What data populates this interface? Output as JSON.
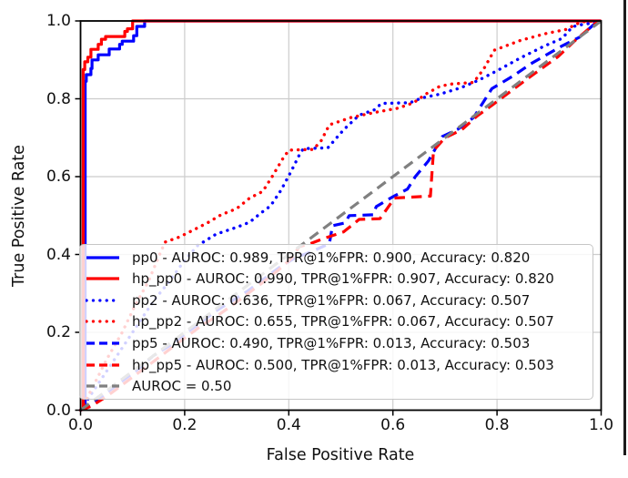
{
  "figure": {
    "background": "#ffffff",
    "grid_color": "#cccccc",
    "spine_color": "#000000",
    "legend_border_color": "#c6c6c6"
  },
  "chart_data": {
    "type": "line",
    "subtype": "roc-curves",
    "title": "",
    "xlabel": "False Positive Rate",
    "ylabel": "True Positive Rate",
    "xlim": [
      0.0,
      1.0
    ],
    "ylim": [
      0.0,
      1.0
    ],
    "x_ticks": [
      0.0,
      0.2,
      0.4,
      0.6,
      0.8,
      1.0
    ],
    "y_ticks": [
      0.0,
      0.2,
      0.4,
      0.6,
      0.8,
      1.0
    ],
    "x_tick_labels": [
      "0.0",
      "0.2",
      "0.4",
      "0.6",
      "0.8",
      "1.0"
    ],
    "y_tick_labels": [
      "0.0",
      "0.2",
      "0.4",
      "0.6",
      "0.8",
      "1.0"
    ],
    "grid": true,
    "legend_position": "lower left",
    "series": [
      {
        "name": "pp0",
        "legend_label": "pp0 - AUROC: 0.989, TPR@1%FPR: 0.900, Accuracy: 0.820",
        "auroc": 0.989,
        "tpr_at_1pct_fpr": 0.9,
        "accuracy": 0.82,
        "color": "#0000ff",
        "style": "solid",
        "points": [
          [
            0.009,
            0
          ],
          [
            0.009,
            0.845
          ],
          [
            0.011,
            0.845
          ],
          [
            0.011,
            0.862
          ],
          [
            0.02,
            0.862
          ],
          [
            0.02,
            0.878
          ],
          [
            0.022,
            0.878
          ],
          [
            0.022,
            0.9
          ],
          [
            0.034,
            0.9
          ],
          [
            0.034,
            0.913
          ],
          [
            0.055,
            0.913
          ],
          [
            0.055,
            0.928
          ],
          [
            0.075,
            0.928
          ],
          [
            0.075,
            0.94
          ],
          [
            0.08,
            0.94
          ],
          [
            0.08,
            0.948
          ],
          [
            0.102,
            0.948
          ],
          [
            0.102,
            0.962
          ],
          [
            0.108,
            0.962
          ],
          [
            0.108,
            0.986
          ],
          [
            0.123,
            0.986
          ],
          [
            0.123,
            1.0
          ],
          [
            1,
            1
          ]
        ]
      },
      {
        "name": "hp_pp0",
        "legend_label": "hp_pp0 - AUROC: 0.990, TPR@1%FPR: 0.907, Accuracy: 0.820",
        "auroc": 0.99,
        "tpr_at_1pct_fpr": 0.907,
        "accuracy": 0.82,
        "color": "#ff0000",
        "style": "solid",
        "points": [
          [
            0.005,
            0
          ],
          [
            0.005,
            0.875
          ],
          [
            0.008,
            0.875
          ],
          [
            0.008,
            0.895
          ],
          [
            0.014,
            0.895
          ],
          [
            0.014,
            0.907
          ],
          [
            0.02,
            0.907
          ],
          [
            0.02,
            0.927
          ],
          [
            0.034,
            0.927
          ],
          [
            0.034,
            0.94
          ],
          [
            0.04,
            0.94
          ],
          [
            0.04,
            0.953
          ],
          [
            0.048,
            0.953
          ],
          [
            0.048,
            0.96
          ],
          [
            0.085,
            0.96
          ],
          [
            0.085,
            0.973
          ],
          [
            0.09,
            0.973
          ],
          [
            0.09,
            0.98
          ],
          [
            0.1,
            0.98
          ],
          [
            0.1,
            1.0
          ],
          [
            1,
            1
          ]
        ]
      },
      {
        "name": "pp2",
        "legend_label": "pp2 - AUROC: 0.636, TPR@1%FPR: 0.067, Accuracy: 0.507",
        "auroc": 0.636,
        "tpr_at_1pct_fpr": 0.067,
        "accuracy": 0.507,
        "color": "#0000ff",
        "style": "dotted",
        "points": [
          [
            0,
            0
          ],
          [
            0.02,
            0.04
          ],
          [
            0.05,
            0.1
          ],
          [
            0.08,
            0.16
          ],
          [
            0.11,
            0.22
          ],
          [
            0.14,
            0.28
          ],
          [
            0.17,
            0.33
          ],
          [
            0.2,
            0.385
          ],
          [
            0.225,
            0.423
          ],
          [
            0.26,
            0.452
          ],
          [
            0.3,
            0.47
          ],
          [
            0.325,
            0.483
          ],
          [
            0.345,
            0.505
          ],
          [
            0.365,
            0.525
          ],
          [
            0.385,
            0.565
          ],
          [
            0.405,
            0.615
          ],
          [
            0.42,
            0.655
          ],
          [
            0.428,
            0.672
          ],
          [
            0.475,
            0.674
          ],
          [
            0.505,
            0.72
          ],
          [
            0.535,
            0.758
          ],
          [
            0.565,
            0.772
          ],
          [
            0.578,
            0.788
          ],
          [
            0.633,
            0.79
          ],
          [
            0.655,
            0.802
          ],
          [
            0.69,
            0.812
          ],
          [
            0.73,
            0.828
          ],
          [
            0.765,
            0.848
          ],
          [
            0.8,
            0.872
          ],
          [
            0.845,
            0.905
          ],
          [
            0.89,
            0.935
          ],
          [
            0.925,
            0.955
          ],
          [
            0.945,
            0.985
          ],
          [
            0.96,
            0.99
          ],
          [
            0.985,
            0.995
          ],
          [
            1,
            1
          ]
        ]
      },
      {
        "name": "hp_pp2",
        "legend_label": "hp_pp2 - AUROC: 0.655, TPR@1%FPR: 0.067, Accuracy: 0.507",
        "auroc": 0.655,
        "tpr_at_1pct_fpr": 0.067,
        "accuracy": 0.507,
        "color": "#ff0000",
        "style": "dotted",
        "points": [
          [
            0,
            0
          ],
          [
            0.02,
            0.05
          ],
          [
            0.05,
            0.13
          ],
          [
            0.08,
            0.2
          ],
          [
            0.105,
            0.27
          ],
          [
            0.13,
            0.33
          ],
          [
            0.155,
            0.41
          ],
          [
            0.163,
            0.432
          ],
          [
            0.19,
            0.445
          ],
          [
            0.22,
            0.465
          ],
          [
            0.245,
            0.482
          ],
          [
            0.27,
            0.502
          ],
          [
            0.3,
            0.518
          ],
          [
            0.325,
            0.545
          ],
          [
            0.35,
            0.562
          ],
          [
            0.368,
            0.6
          ],
          [
            0.388,
            0.645
          ],
          [
            0.4,
            0.668
          ],
          [
            0.447,
            0.67
          ],
          [
            0.462,
            0.692
          ],
          [
            0.478,
            0.733
          ],
          [
            0.52,
            0.752
          ],
          [
            0.565,
            0.765
          ],
          [
            0.61,
            0.776
          ],
          [
            0.64,
            0.79
          ],
          [
            0.663,
            0.812
          ],
          [
            0.69,
            0.832
          ],
          [
            0.712,
            0.838
          ],
          [
            0.755,
            0.842
          ],
          [
            0.775,
            0.878
          ],
          [
            0.795,
            0.925
          ],
          [
            0.845,
            0.95
          ],
          [
            0.895,
            0.968
          ],
          [
            0.932,
            0.978
          ],
          [
            0.962,
            0.998
          ],
          [
            1,
            1
          ]
        ]
      },
      {
        "name": "pp5",
        "legend_label": "pp5 - AUROC: 0.490, TPR@1%FPR: 0.013, Accuracy: 0.503",
        "auroc": 0.49,
        "tpr_at_1pct_fpr": 0.013,
        "accuracy": 0.503,
        "color": "#0000ff",
        "style": "dashed",
        "points": [
          [
            0,
            0
          ],
          [
            0.02,
            0.012
          ],
          [
            0.05,
            0.045
          ],
          [
            0.08,
            0.075
          ],
          [
            0.11,
            0.105
          ],
          [
            0.14,
            0.14
          ],
          [
            0.17,
            0.165
          ],
          [
            0.2,
            0.195
          ],
          [
            0.23,
            0.225
          ],
          [
            0.26,
            0.255
          ],
          [
            0.29,
            0.28
          ],
          [
            0.32,
            0.305
          ],
          [
            0.35,
            0.335
          ],
          [
            0.38,
            0.365
          ],
          [
            0.41,
            0.39
          ],
          [
            0.445,
            0.408
          ],
          [
            0.478,
            0.428
          ],
          [
            0.484,
            0.474
          ],
          [
            0.508,
            0.481
          ],
          [
            0.516,
            0.5
          ],
          [
            0.562,
            0.502
          ],
          [
            0.568,
            0.523
          ],
          [
            0.598,
            0.547
          ],
          [
            0.628,
            0.568
          ],
          [
            0.643,
            0.6
          ],
          [
            0.668,
            0.64
          ],
          [
            0.686,
            0.682
          ],
          [
            0.695,
            0.703
          ],
          [
            0.725,
            0.722
          ],
          [
            0.755,
            0.752
          ],
          [
            0.79,
            0.826
          ],
          [
            0.83,
            0.858
          ],
          [
            0.865,
            0.89
          ],
          [
            0.925,
            0.936
          ],
          [
            0.958,
            0.958
          ],
          [
            0.988,
            0.993
          ],
          [
            1,
            1
          ]
        ]
      },
      {
        "name": "hp_pp5",
        "legend_label": "hp_pp5 - AUROC: 0.500, TPR@1%FPR: 0.013, Accuracy: 0.503",
        "auroc": 0.5,
        "tpr_at_1pct_fpr": 0.013,
        "accuracy": 0.503,
        "color": "#ff0000",
        "style": "dashed",
        "points": [
          [
            0,
            0
          ],
          [
            0.02,
            0.01
          ],
          [
            0.05,
            0.035
          ],
          [
            0.08,
            0.065
          ],
          [
            0.11,
            0.095
          ],
          [
            0.14,
            0.125
          ],
          [
            0.17,
            0.155
          ],
          [
            0.2,
            0.185
          ],
          [
            0.23,
            0.215
          ],
          [
            0.26,
            0.24
          ],
          [
            0.29,
            0.268
          ],
          [
            0.32,
            0.298
          ],
          [
            0.35,
            0.328
          ],
          [
            0.38,
            0.36
          ],
          [
            0.405,
            0.39
          ],
          [
            0.42,
            0.42
          ],
          [
            0.442,
            0.428
          ],
          [
            0.465,
            0.44
          ],
          [
            0.505,
            0.458
          ],
          [
            0.528,
            0.482
          ],
          [
            0.535,
            0.49
          ],
          [
            0.575,
            0.492
          ],
          [
            0.59,
            0.52
          ],
          [
            0.603,
            0.545
          ],
          [
            0.672,
            0.55
          ],
          [
            0.678,
            0.667
          ],
          [
            0.7,
            0.7
          ],
          [
            0.732,
            0.72
          ],
          [
            0.762,
            0.756
          ],
          [
            0.792,
            0.785
          ],
          [
            0.832,
            0.825
          ],
          [
            0.862,
            0.855
          ],
          [
            0.917,
            0.908
          ],
          [
            0.952,
            0.952
          ],
          [
            0.988,
            0.993
          ],
          [
            1,
            1
          ]
        ]
      },
      {
        "name": "chance",
        "legend_label": "AUROC = 0.50",
        "auroc": 0.5,
        "color": "#808080",
        "style": "dashed",
        "points": [
          [
            0,
            0
          ],
          [
            1,
            1
          ]
        ]
      }
    ]
  }
}
